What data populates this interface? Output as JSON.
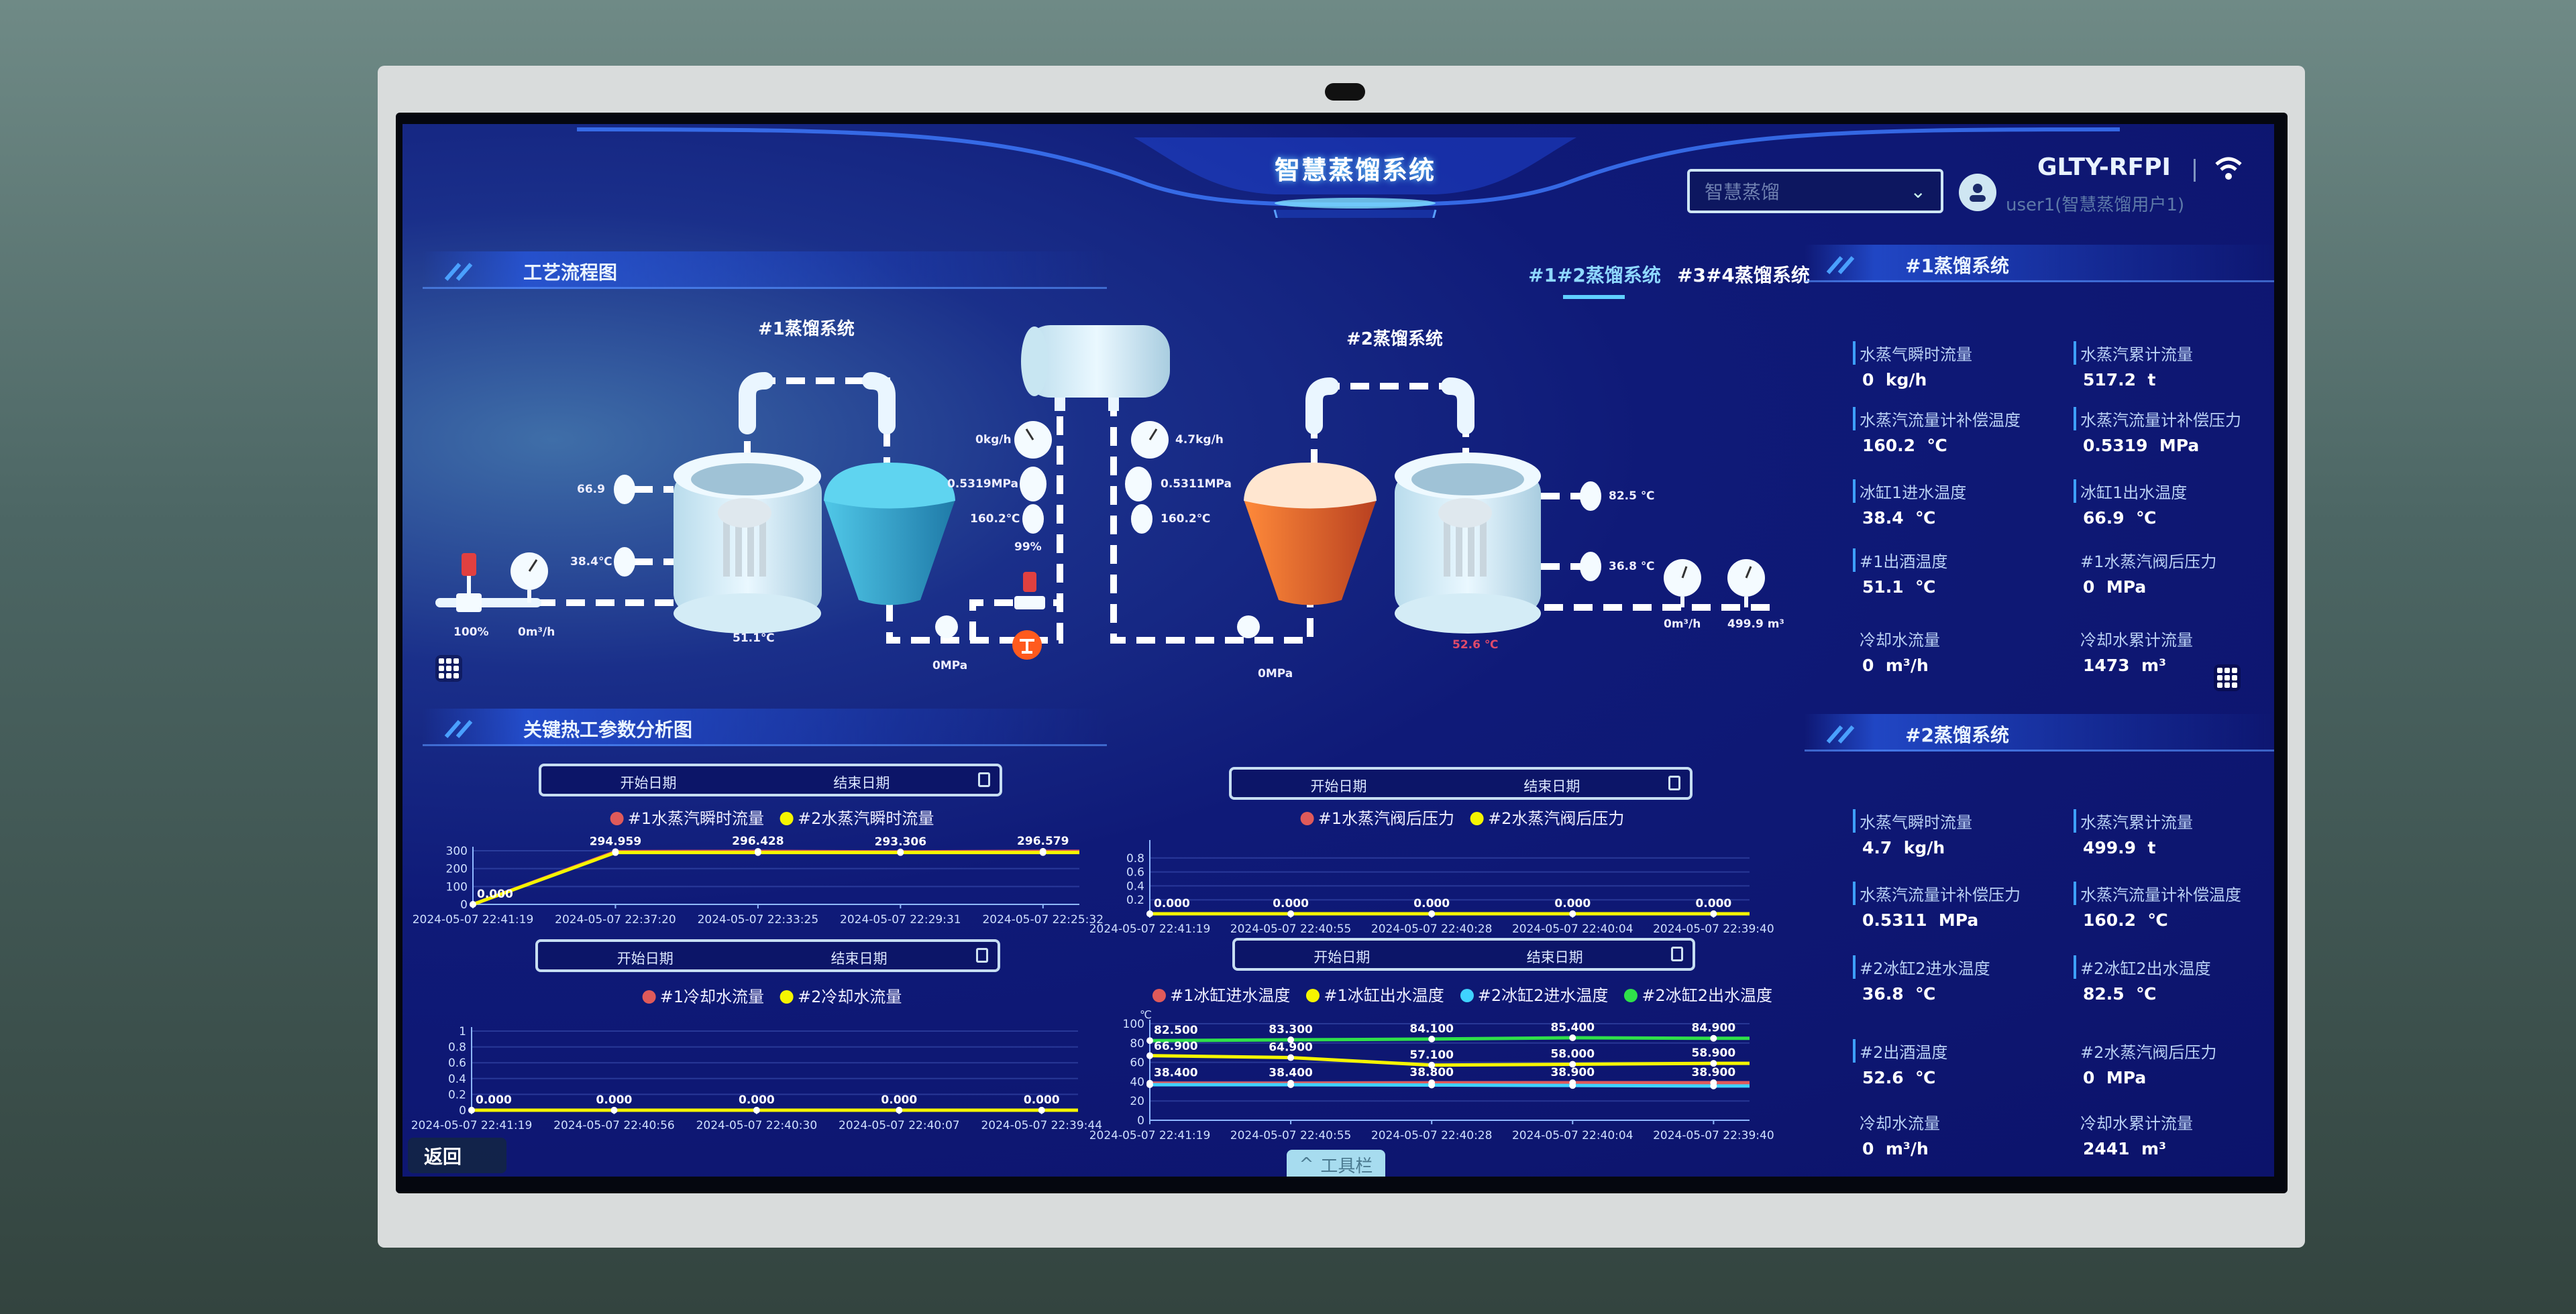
{
  "header": {
    "title": "智慧蒸馏系统",
    "system_select": {
      "value": "智慧蒸馏"
    },
    "user": "user1(智慧蒸馏用户1)",
    "device": "GLTY-RFPI"
  },
  "process": {
    "section_title": "工艺流程图",
    "tabs": [
      {
        "label": "#1#2蒸馏系统",
        "active": true
      },
      {
        "label": "#3#4蒸馏系统",
        "active": false
      }
    ],
    "system1_title": "#1蒸馏系统",
    "system2_title": "#2蒸馏系统",
    "labels": {
      "s1_condenser_out": "66.9",
      "s1_condenser_in": "38.4℃",
      "s1_valve": "100%",
      "s1_coolant_flow": "0m³/h",
      "s1_tank_temp": "51.1℃",
      "s1_pump_pressure": "0MPa",
      "s1_bypass_valve": "99%",
      "s1_steam_flow": "0kg/h",
      "s1_steam_pressure": "0.5319MPa",
      "s1_steam_temp": "160.2℃",
      "s2_steam_flow": "4.7kg/h",
      "s2_steam_pressure": "0.5311MPa",
      "s2_steam_temp": "160.2℃",
      "s2_pump_pressure": "0MPa",
      "s2_condenser_out": "82.5 ℃",
      "s2_condenser_in": "36.8 ℃",
      "s2_tank_temp": "52.6 ℃",
      "s2_coolant_flow": "0m³/h",
      "s2_coolant_total": "499.9 m³"
    }
  },
  "panels": [
    {
      "title": "#1蒸馏系统",
      "items": [
        {
          "label": "水蒸气瞬时流量",
          "value": "0",
          "unit": "kg/h"
        },
        {
          "label": "水蒸汽累计流量",
          "value": "517.2",
          "unit": "t"
        },
        {
          "label": "水蒸汽流量计补偿温度",
          "value": "160.2",
          "unit": "℃"
        },
        {
          "label": "水蒸汽流量计补偿压力",
          "value": "0.5319",
          "unit": "MPa"
        },
        {
          "label": "冰缸1进水温度",
          "value": "38.4",
          "unit": "℃"
        },
        {
          "label": "冰缸1出水温度",
          "value": "66.9",
          "unit": "℃"
        },
        {
          "label": "#1出酒温度",
          "value": "51.1",
          "unit": "℃"
        },
        {
          "label": "#1水蒸汽阀后压力",
          "value": "0",
          "unit": "MPa"
        },
        {
          "label": "冷却水流量",
          "value": "0",
          "unit": "m³/h"
        },
        {
          "label": "冷却水累计流量",
          "value": "1473",
          "unit": "m³"
        }
      ]
    },
    {
      "title": "#2蒸馏系统",
      "items": [
        {
          "label": "水蒸气瞬时流量",
          "value": "4.7",
          "unit": "kg/h"
        },
        {
          "label": "水蒸汽累计流量",
          "value": "499.9",
          "unit": "t"
        },
        {
          "label": "水蒸汽流量计补偿压力",
          "value": "0.5311",
          "unit": "MPa"
        },
        {
          "label": "水蒸汽流量计补偿温度",
          "value": "160.2",
          "unit": "℃"
        },
        {
          "label": "#2冰缸2进水温度",
          "value": "36.8",
          "unit": "℃"
        },
        {
          "label": "#2冰缸2出水温度",
          "value": "82.5",
          "unit": "℃"
        },
        {
          "label": "#2出酒温度",
          "value": "52.6",
          "unit": "℃"
        },
        {
          "label": "#2水蒸汽阀后压力",
          "value": "0",
          "unit": "MPa"
        },
        {
          "label": "冷却水流量",
          "value": "0",
          "unit": "m³/h"
        },
        {
          "label": "冷却水累计流量",
          "value": "2441",
          "unit": "m³"
        }
      ]
    }
  ],
  "analysis": {
    "section_title": "关键热工参数分析图",
    "start_placeholder": "开始日期",
    "end_placeholder": "结束日期",
    "back_label": "返回",
    "toolbar_label": "工具栏"
  },
  "colors": {
    "red": "#e05a5a",
    "yellow": "#f5f500",
    "cyan": "#3fd2ff",
    "green": "#2fe04a",
    "accent": "#3da0ff"
  },
  "chart_data": [
    {
      "type": "line",
      "ylim": [
        0,
        300
      ],
      "yticks": [
        0,
        100,
        200,
        300
      ],
      "unit": "",
      "x": [
        "2024-05-07 22:41:19",
        "2024-05-07 22:37:20",
        "2024-05-07 22:33:25",
        "2024-05-07 22:29:31",
        "2024-05-07 22:25:32"
      ],
      "series": [
        {
          "name": "#1水蒸汽瞬时流量",
          "color": "#e05a5a",
          "values": [
            0,
            294.959,
            296.428,
            293.306,
            296.579
          ],
          "show_labels": true
        },
        {
          "name": "#2水蒸汽瞬时流量",
          "color": "#f5f500",
          "values": [
            0,
            290,
            290,
            290,
            290
          ],
          "show_labels": false
        }
      ]
    },
    {
      "type": "line",
      "ylim": [
        0,
        1
      ],
      "yticks": [
        0.2,
        0.4,
        0.6,
        0.8
      ],
      "unit": "",
      "x": [
        "2024-05-07 22:41:19",
        "2024-05-07 22:40:55",
        "2024-05-07 22:40:28",
        "2024-05-07 22:40:04",
        "2024-05-07 22:39:40"
      ],
      "series": [
        {
          "name": "#1水蒸汽阀后压力",
          "color": "#e05a5a",
          "values": [
            0,
            0,
            0,
            0,
            0
          ],
          "show_labels": false
        },
        {
          "name": "#2水蒸汽阀后压力",
          "color": "#f5f500",
          "values": [
            0,
            0,
            0,
            0,
            0
          ],
          "show_labels": true
        }
      ]
    },
    {
      "type": "line",
      "ylim": [
        0,
        1
      ],
      "yticks": [
        0,
        0.2,
        0.4,
        0.6,
        0.8,
        1
      ],
      "unit": "",
      "x": [
        "2024-05-07 22:41:19",
        "2024-05-07 22:40:56",
        "2024-05-07 22:40:30",
        "2024-05-07 22:40:07",
        "2024-05-07 22:39:44"
      ],
      "series": [
        {
          "name": "#1冷却水流量",
          "color": "#e05a5a",
          "values": [
            0,
            0,
            0,
            0,
            0
          ],
          "show_labels": false
        },
        {
          "name": "#2冷却水流量",
          "color": "#f5f500",
          "values": [
            0,
            0,
            0,
            0,
            0
          ],
          "show_labels": true
        }
      ]
    },
    {
      "type": "line",
      "ylim": [
        0,
        100
      ],
      "yticks": [
        0,
        20,
        40,
        60,
        80,
        100
      ],
      "unit": "℃",
      "x": [
        "2024-05-07 22:41:19",
        "2024-05-07 22:40:55",
        "2024-05-07 22:40:28",
        "2024-05-07 22:40:04",
        "2024-05-07 22:39:40"
      ],
      "series": [
        {
          "name": "#1冰缸进水温度",
          "color": "#e05a5a",
          "values": [
            38.4,
            38.4,
            38.8,
            38.9,
            38.9
          ],
          "show_labels": true
        },
        {
          "name": "#1冰缸出水温度",
          "color": "#f5f500",
          "values": [
            66.9,
            64.9,
            57.1,
            58.0,
            58.9
          ],
          "show_labels": true
        },
        {
          "name": "#2冰缸2进水温度",
          "color": "#3fd2ff",
          "values": [
            36.8,
            36.8,
            36.5,
            36.0,
            35.5
          ],
          "show_labels": false
        },
        {
          "name": "#2冰缸2出水温度",
          "color": "#2fe04a",
          "values": [
            82.5,
            83.3,
            84.1,
            85.4,
            84.9
          ],
          "show_labels": true
        }
      ]
    }
  ]
}
